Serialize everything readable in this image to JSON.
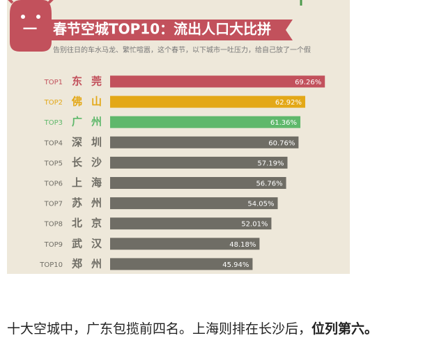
{
  "chart_data": {
    "type": "hbar",
    "section_number": "一",
    "title": "春节空城TOP10：流出人口大比拼",
    "subtitle": "告别往日的车水马龙、繁忙喧嚣，这个春节，以下城市一吐压力，给自己放了一个假",
    "rank_labels": [
      "TOP1",
      "TOP2",
      "TOP3",
      "TOP4",
      "TOP5",
      "TOP6",
      "TOP7",
      "TOP8",
      "TOP9",
      "TOP10"
    ],
    "categories": [
      "东莞",
      "佛山",
      "广州",
      "深圳",
      "长沙",
      "上海",
      "苏州",
      "北京",
      "武汉",
      "郑州"
    ],
    "values": [
      69.26,
      62.92,
      61.36,
      60.76,
      57.19,
      56.76,
      54.05,
      52.01,
      48.18,
      45.94
    ],
    "value_labels": [
      "69.26%",
      "62.92%",
      "61.36%",
      "60.76%",
      "57.19%",
      "56.76%",
      "54.05%",
      "52.01%",
      "48.18%",
      "45.94%"
    ],
    "colors": [
      "#c2515c",
      "#e3a817",
      "#5fb86b",
      "#6f6d65",
      "#6f6d65",
      "#6f6d65",
      "#6f6d65",
      "#6f6d65",
      "#6f6d65",
      "#6f6d65"
    ]
  },
  "article": {
    "text": "十大空城中，广东包揽前四名。上海则排在长沙后，",
    "bold": "位列第六。"
  }
}
